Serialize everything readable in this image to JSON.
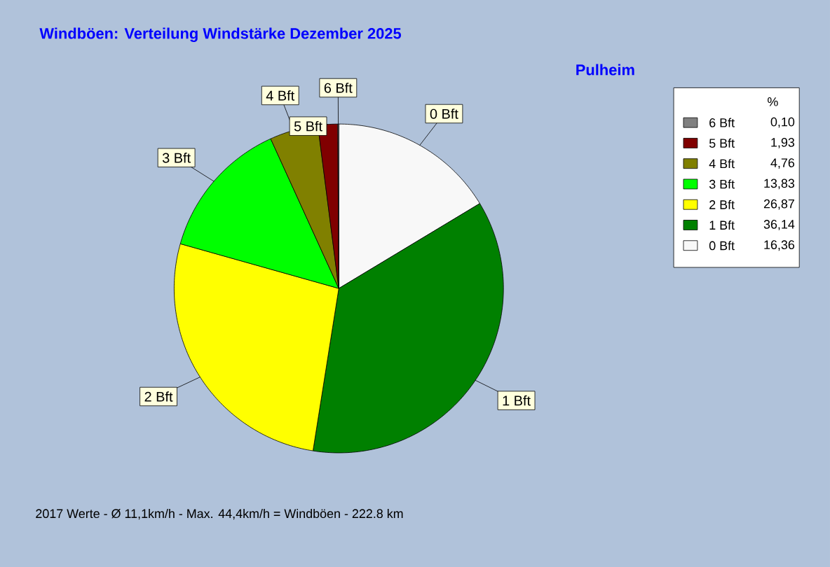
{
  "chart_data": {
    "type": "pie",
    "title": "Windböen: Verteilung Windstärke  Dezember 2025",
    "subtitle": "Pulheim",
    "legend_title": "%",
    "legend": "top right",
    "categories": [
      "0 Bft",
      "1 Bft",
      "2 Bft",
      "3 Bft",
      "4 Bft",
      "5 Bft",
      "6 Bft"
    ],
    "values": [
      16.36,
      36.14,
      26.87,
      13.83,
      4.76,
      1.93,
      0.1
    ],
    "value_labels": [
      "16,36",
      "36,14",
      "26,87",
      "13,83",
      "4,76",
      "1,93",
      "0,10"
    ],
    "colors": [
      "#f8f8f8",
      "#008000",
      "#ffff00",
      "#00ff00",
      "#808000",
      "#800000",
      "#808080"
    ],
    "annotations": [
      "2017 Werte   -   Ø 11,1km/h  -  Max. 44,4km/h = Windböen   -   222.8 km"
    ]
  }
}
